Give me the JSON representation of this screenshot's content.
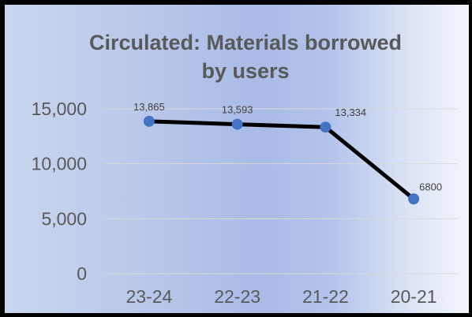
{
  "chart_data": {
    "type": "line",
    "title": [
      "Circulated: Materials borrowed",
      "by users"
    ],
    "categories": [
      "23-24",
      "22-23",
      "21-22",
      "20-21"
    ],
    "series": [
      {
        "values": [
          13865,
          13593,
          13334,
          6800
        ]
      }
    ],
    "data_labels": [
      "13,865",
      "13,593",
      "13,334",
      "6800"
    ],
    "y_ticks": [
      "0",
      "5,000",
      "10,000",
      "15,000"
    ],
    "y_tick_values": [
      0,
      5000,
      10000,
      15000
    ],
    "ylim": [
      0,
      15000
    ],
    "grid": true,
    "legend": "none",
    "colors": {
      "line": "#000000",
      "marker": "#4472c4",
      "grid": "#d9d9d9",
      "text": "#595959"
    }
  }
}
